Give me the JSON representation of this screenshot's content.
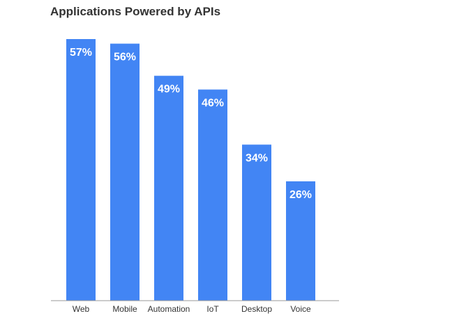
{
  "chart_data": {
    "type": "bar",
    "title": "Applications Powered by APIs",
    "categories": [
      "Web",
      "Mobile",
      "Automation",
      "IoT",
      "Desktop",
      "Voice"
    ],
    "values": [
      57,
      56,
      49,
      46,
      34,
      26
    ],
    "value_labels": [
      "57%",
      "56%",
      "49%",
      "46%",
      "34%",
      "26%"
    ],
    "unit": "%",
    "xlabel": "",
    "ylabel": "",
    "ylim": [
      0,
      57
    ],
    "grid": false,
    "legend": "none",
    "colors": {
      "bar": "#4285f4",
      "axis": "#999999",
      "bar_label": "#ffffff",
      "text": "#333333"
    }
  }
}
